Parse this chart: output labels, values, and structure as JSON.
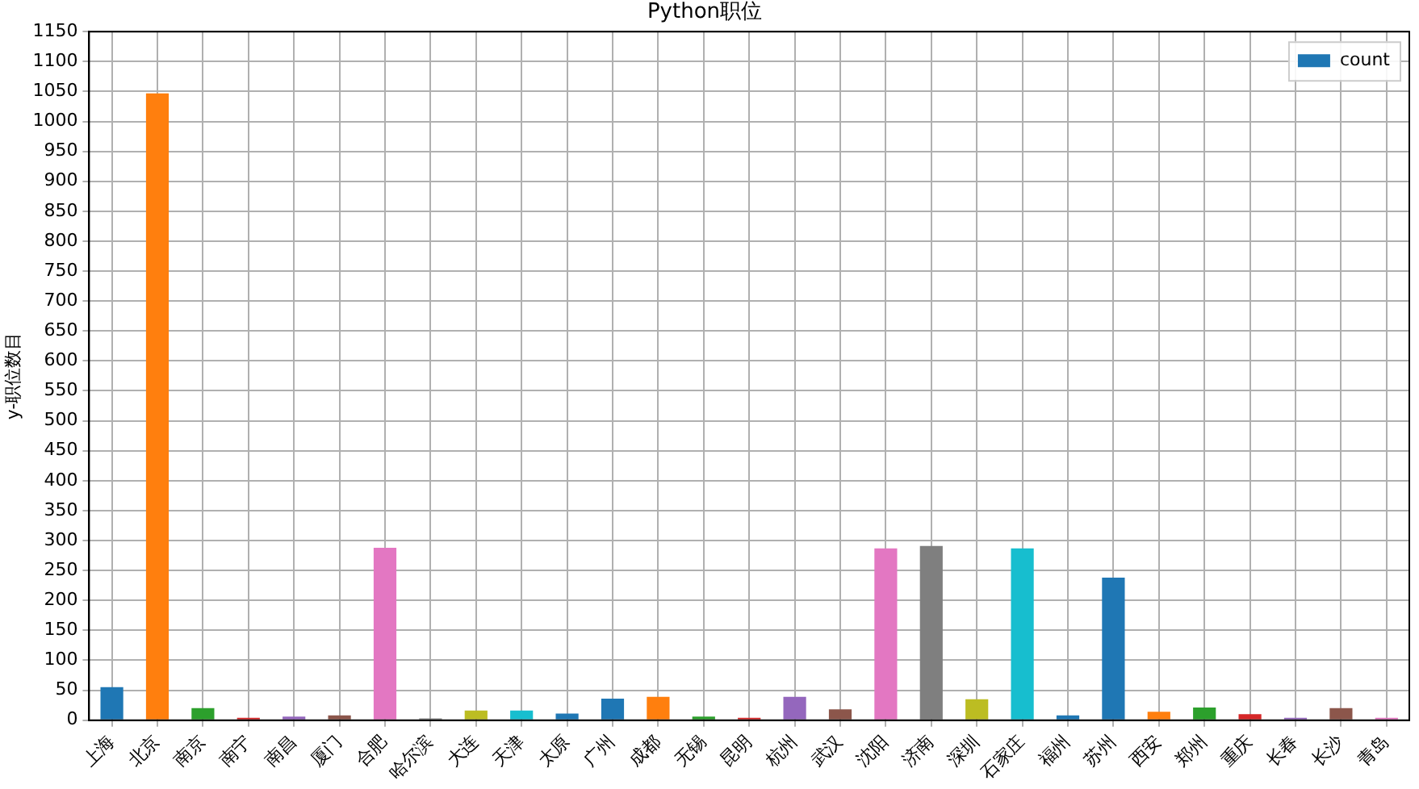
{
  "chart_data": {
    "type": "bar",
    "title": "Python职位",
    "ylabel": "y-职位数目",
    "categories": [
      "上海",
      "北京",
      "南京",
      "南宁",
      "南昌",
      "厦门",
      "合肥",
      "哈尔滨",
      "大连",
      "天津",
      "太原",
      "广州",
      "成都",
      "无锡",
      "昆明",
      "杭州",
      "武汉",
      "沈阳",
      "济南",
      "深圳",
      "石家庄",
      "福州",
      "苏州",
      "西安",
      "郑州",
      "重庆",
      "长春",
      "长沙",
      "青岛"
    ],
    "series": [
      {
        "name": "count",
        "color": "#1f77b4",
        "colors": [
          "#1f77b4",
          "#ff7f0e",
          "#2ca02c",
          "#d62728",
          "#9467bd",
          "#8c564b",
          "#e377c2",
          "#7f7f7f",
          "#bcbd22",
          "#17becf",
          "#1f77b4",
          "#1f77b4",
          "#ff7f0e",
          "#2ca02c",
          "#d62728",
          "#9467bd",
          "#8c564b",
          "#e377c2",
          "#7f7f7f",
          "#bcbd22",
          "#17becf",
          "#1f77b4",
          "#1f77b4",
          "#ff7f0e",
          "#2ca02c",
          "#d62728",
          "#9467bd",
          "#8c564b",
          "#e377c2"
        ],
        "values": [
          55,
          1047,
          20,
          4,
          6,
          8,
          288,
          3,
          16,
          16,
          11,
          36,
          39,
          6,
          4,
          39,
          18,
          287,
          291,
          35,
          287,
          8,
          238,
          14,
          21,
          10,
          4,
          20,
          4
        ]
      }
    ],
    "ylim": [
      0,
      1150
    ],
    "yticks": [
      0,
      50,
      100,
      150,
      200,
      250,
      300,
      350,
      400,
      450,
      500,
      550,
      600,
      650,
      700,
      750,
      800,
      850,
      900,
      950,
      1000,
      1050,
      1100,
      1150
    ],
    "grid": true,
    "legend": "top right"
  }
}
